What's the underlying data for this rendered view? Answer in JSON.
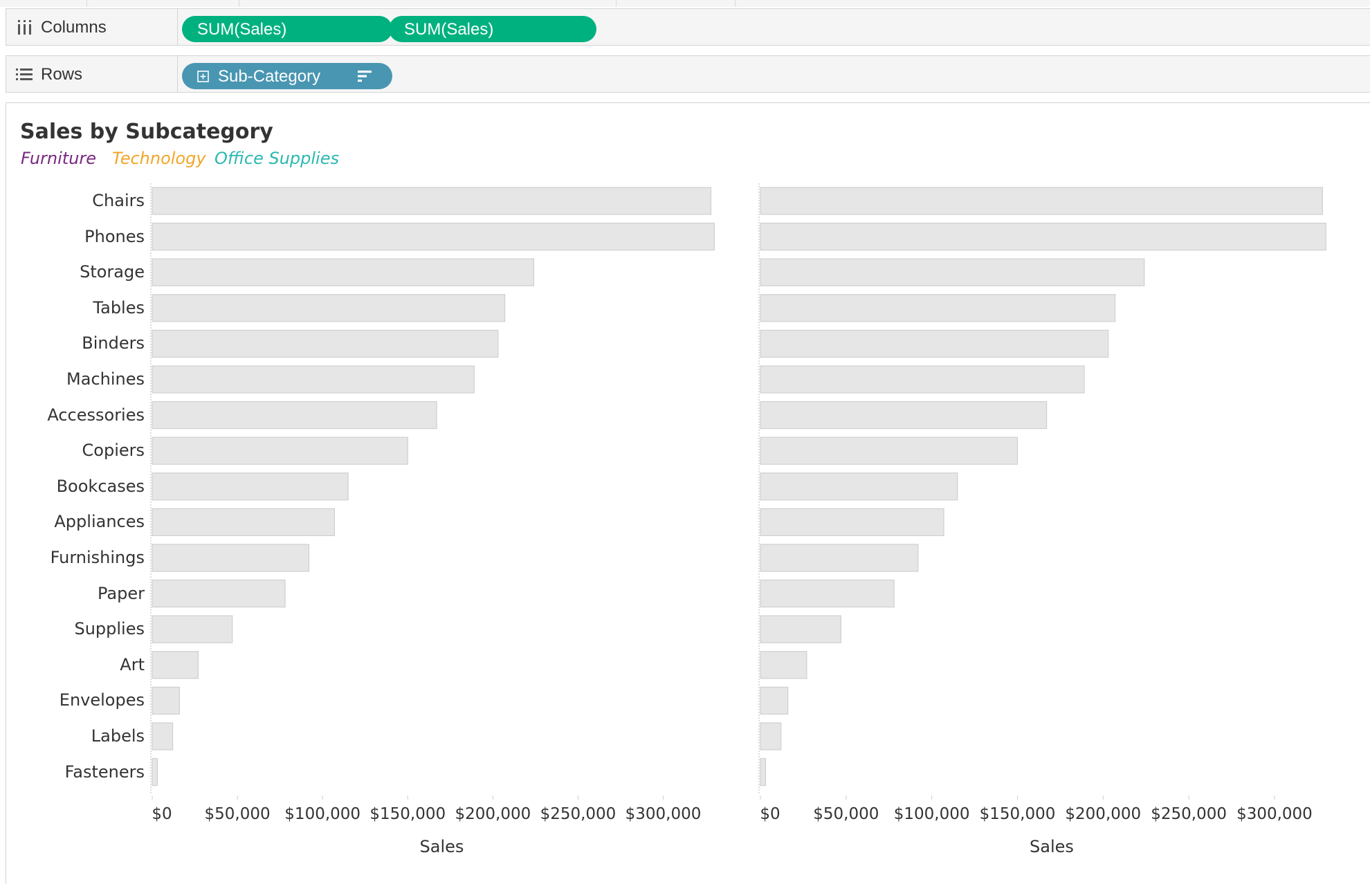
{
  "shelves": {
    "columns": {
      "label": "Columns",
      "icon": "columns-icon",
      "pills": [
        {
          "text": "SUM(Sales)"
        },
        {
          "text": "SUM(Sales)"
        }
      ]
    },
    "rows": {
      "label": "Rows",
      "icon": "rows-icon",
      "pills": [
        {
          "text": "Sub-Category",
          "icon": "expand-plus-icon",
          "sort_icon": "sort-descending-icon"
        }
      ]
    }
  },
  "colors": {
    "measure_pill": "#00b180",
    "dimension_pill": "#4996b2",
    "bar_fill": "#e6e6e6",
    "bar_stroke": "#cfcfcf",
    "furniture": "#7b2882",
    "technology": "#f2a628",
    "office_supplies": "#2bb8b0"
  },
  "view": {
    "title": "Sales by Subcategory",
    "legend": [
      "Furniture",
      "Technology",
      "Office Supplies"
    ]
  },
  "chart_data": [
    {
      "type": "bar",
      "orientation": "horizontal",
      "title": "Sales by Subcategory",
      "xlabel": "Sales",
      "ylabel": "",
      "xlim": [
        0,
        340000
      ],
      "x_ticks": [
        "$0",
        "$50,000",
        "$100,000",
        "$150,000",
        "$200,000",
        "$250,000",
        "$300,000"
      ],
      "categories": [
        "Chairs",
        "Phones",
        "Storage",
        "Tables",
        "Binders",
        "Machines",
        "Accessories",
        "Copiers",
        "Bookcases",
        "Appliances",
        "Furnishings",
        "Paper",
        "Supplies",
        "Art",
        "Envelopes",
        "Labels",
        "Fasteners"
      ],
      "values": [
        328000,
        330000,
        224000,
        207000,
        203000,
        189000,
        167000,
        150000,
        115000,
        107000,
        92000,
        78000,
        47000,
        27000,
        16000,
        12000,
        3000
      ]
    },
    {
      "type": "bar",
      "orientation": "horizontal",
      "title": "Sales by Subcategory",
      "xlabel": "Sales",
      "ylabel": "",
      "xlim": [
        0,
        340000
      ],
      "x_ticks": [
        "$0",
        "$50,000",
        "$100,000",
        "$150,000",
        "$200,000",
        "$250,000",
        "$300,000"
      ],
      "categories": [
        "Chairs",
        "Phones",
        "Storage",
        "Tables",
        "Binders",
        "Machines",
        "Accessories",
        "Copiers",
        "Bookcases",
        "Appliances",
        "Furnishings",
        "Paper",
        "Supplies",
        "Art",
        "Envelopes",
        "Labels",
        "Fasteners"
      ],
      "values": [
        328000,
        330000,
        224000,
        207000,
        203000,
        189000,
        167000,
        150000,
        115000,
        107000,
        92000,
        78000,
        47000,
        27000,
        16000,
        12000,
        3000
      ]
    }
  ]
}
